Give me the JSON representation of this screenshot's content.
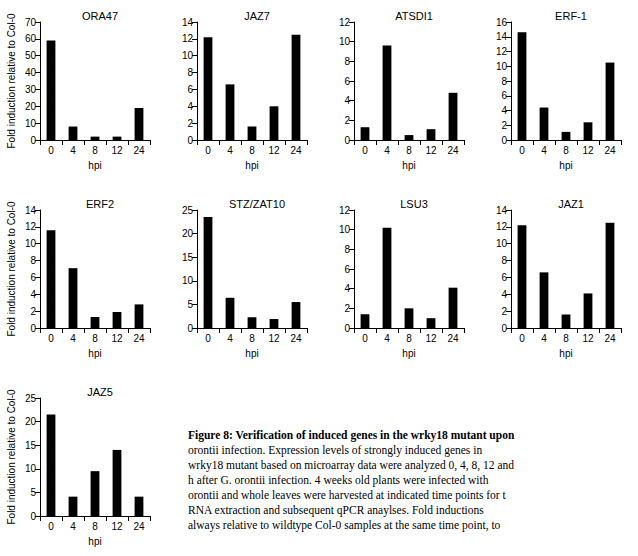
{
  "chart_data": [
    {
      "type": "bar",
      "title": "ORA47",
      "categories": [
        "0",
        "4",
        "8",
        "12",
        "24"
      ],
      "values": [
        59,
        8,
        2,
        2,
        19
      ],
      "color": "#000000",
      "xlabel": "hpi",
      "ylabel": "Fold induction relative to Col-0",
      "ylim": [
        0,
        70
      ],
      "yticks": [
        0,
        10,
        20,
        30,
        40,
        50,
        60,
        70
      ],
      "grid": false
    },
    {
      "type": "bar",
      "title": "JAZ7",
      "categories": [
        "0",
        "4",
        "8",
        "12",
        "24"
      ],
      "values": [
        12.2,
        6.6,
        1.6,
        4,
        12.5
      ],
      "color": "#000000",
      "xlabel": "hpi",
      "ylim": [
        0,
        14
      ],
      "yticks": [
        0,
        2,
        4,
        6,
        8,
        10,
        12,
        14
      ],
      "grid": false
    },
    {
      "type": "bar",
      "title": "ATSDI1",
      "categories": [
        "0",
        "4",
        "8",
        "12",
        "24"
      ],
      "values": [
        1.3,
        9.6,
        0.5,
        1.1,
        4.8
      ],
      "color": "#000000",
      "xlabel": "hpi",
      "ylim": [
        0,
        12
      ],
      "yticks": [
        0,
        2,
        4,
        6,
        8,
        10,
        12
      ],
      "grid": false
    },
    {
      "type": "bar",
      "title": "ERF-1",
      "categories": [
        "0",
        "4",
        "8",
        "12",
        "24"
      ],
      "values": [
        14.6,
        4.4,
        1.1,
        2.4,
        10.5
      ],
      "color": "#000000",
      "xlabel": "hpi",
      "ylim": [
        0,
        16
      ],
      "yticks": [
        0,
        2,
        4,
        6,
        8,
        10,
        12,
        14,
        16
      ],
      "grid": false
    },
    {
      "type": "bar",
      "title": "ERF2",
      "categories": [
        "0",
        "4",
        "8",
        "12",
        "24"
      ],
      "values": [
        11.6,
        7.1,
        1.3,
        1.9,
        2.8
      ],
      "color": "#000000",
      "xlabel": "hpi",
      "ylabel": "Fold induction relative to Col-0",
      "ylim": [
        0,
        14
      ],
      "yticks": [
        0,
        2,
        4,
        6,
        8,
        10,
        12,
        14
      ],
      "grid": false
    },
    {
      "type": "bar",
      "title": "STZ/ZAT10",
      "categories": [
        "0",
        "4",
        "8",
        "12",
        "24"
      ],
      "values": [
        23.5,
        6.4,
        2.3,
        1.9,
        5.5
      ],
      "color": "#000000",
      "xlabel": "hpi",
      "ylim": [
        0,
        25
      ],
      "yticks": [
        0,
        5,
        10,
        15,
        20,
        25
      ],
      "grid": false
    },
    {
      "type": "bar",
      "title": "LSU3",
      "categories": [
        "0",
        "4",
        "8",
        "12",
        "24"
      ],
      "values": [
        1.4,
        10.2,
        2.0,
        1.0,
        4.1
      ],
      "color": "#000000",
      "xlabel": "hpi",
      "ylim": [
        0,
        12
      ],
      "yticks": [
        0,
        2,
        4,
        6,
        8,
        10,
        12
      ],
      "grid": false
    },
    {
      "type": "bar",
      "title": "JAZ1",
      "categories": [
        "0",
        "4",
        "8",
        "12",
        "24"
      ],
      "values": [
        12.2,
        6.6,
        1.6,
        4.1,
        12.5
      ],
      "color": "#000000",
      "xlabel": "hpi",
      "ylim": [
        0,
        14
      ],
      "yticks": [
        0,
        2,
        4,
        6,
        8,
        10,
        12,
        14
      ],
      "grid": false
    },
    {
      "type": "bar",
      "title": "JAZ5",
      "categories": [
        "0",
        "4",
        "8",
        "12",
        "24"
      ],
      "values": [
        21.5,
        4.1,
        9.5,
        14,
        4.1
      ],
      "color": "#000000",
      "xlabel": "hpi",
      "ylabel": "Fold induction relative to Col-0",
      "ylim": [
        0,
        25
      ],
      "yticks": [
        0,
        5,
        10,
        15,
        20,
        25
      ],
      "grid": false
    }
  ],
  "caption": [
    "Figure 8: Verification of induced genes in the wrky18 mutant upon",
    "orontii infection. Expression levels of strongly induced genes in",
    "wrky18 mutant based on microarray data were analyzed 0, 4, 8, 12 and",
    "h after G. orontii infection. 4 weeks old plants were infected with",
    "orontii and whole leaves were harvested at indicated time points for t",
    "RNA extraction and subsequent qPCR anaylses. Fold inductions",
    "always relative to wildtype Col-0 samples at the same time point, to"
  ]
}
